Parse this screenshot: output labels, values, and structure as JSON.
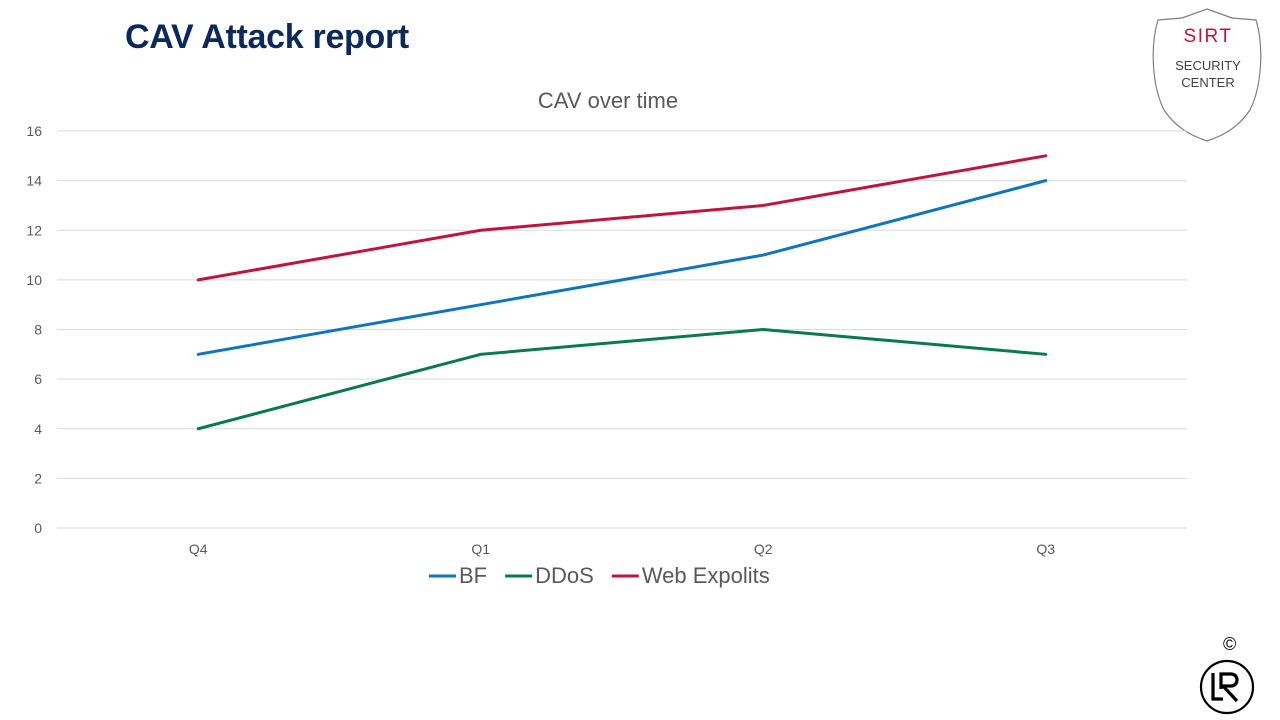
{
  "slide": {
    "title": "CAV Attack report",
    "copyright": "©"
  },
  "badge": {
    "brand": "SIRT",
    "line1": "SECURITY",
    "line2": "CENTER",
    "icon": "shield-icon"
  },
  "logo": {
    "icon": "lr-logo-icon",
    "text": "LR"
  },
  "colors": {
    "title": "#0b2a5b",
    "brand_red": "#c0143c",
    "BF": "#0f75bc",
    "DDoS": "#087a4e",
    "Web Expolits": "#c0143c",
    "grid": "#d9d9d9",
    "axis_text": "#595959"
  },
  "chart_data": {
    "type": "line",
    "title": "CAV over time",
    "xlabel": "",
    "ylabel": "",
    "categories": [
      "Q4",
      "Q1",
      "Q2",
      "Q3"
    ],
    "ylim": [
      0,
      16
    ],
    "yticks": [
      0,
      2,
      4,
      6,
      8,
      10,
      12,
      14,
      16
    ],
    "grid": true,
    "legend_position": "bottom",
    "series": [
      {
        "name": "BF",
        "values": [
          7,
          9,
          11,
          14
        ]
      },
      {
        "name": "DDoS",
        "values": [
          4,
          7,
          8,
          7
        ]
      },
      {
        "name": "Web Expolits",
        "values": [
          10,
          12,
          13,
          15
        ]
      }
    ]
  }
}
